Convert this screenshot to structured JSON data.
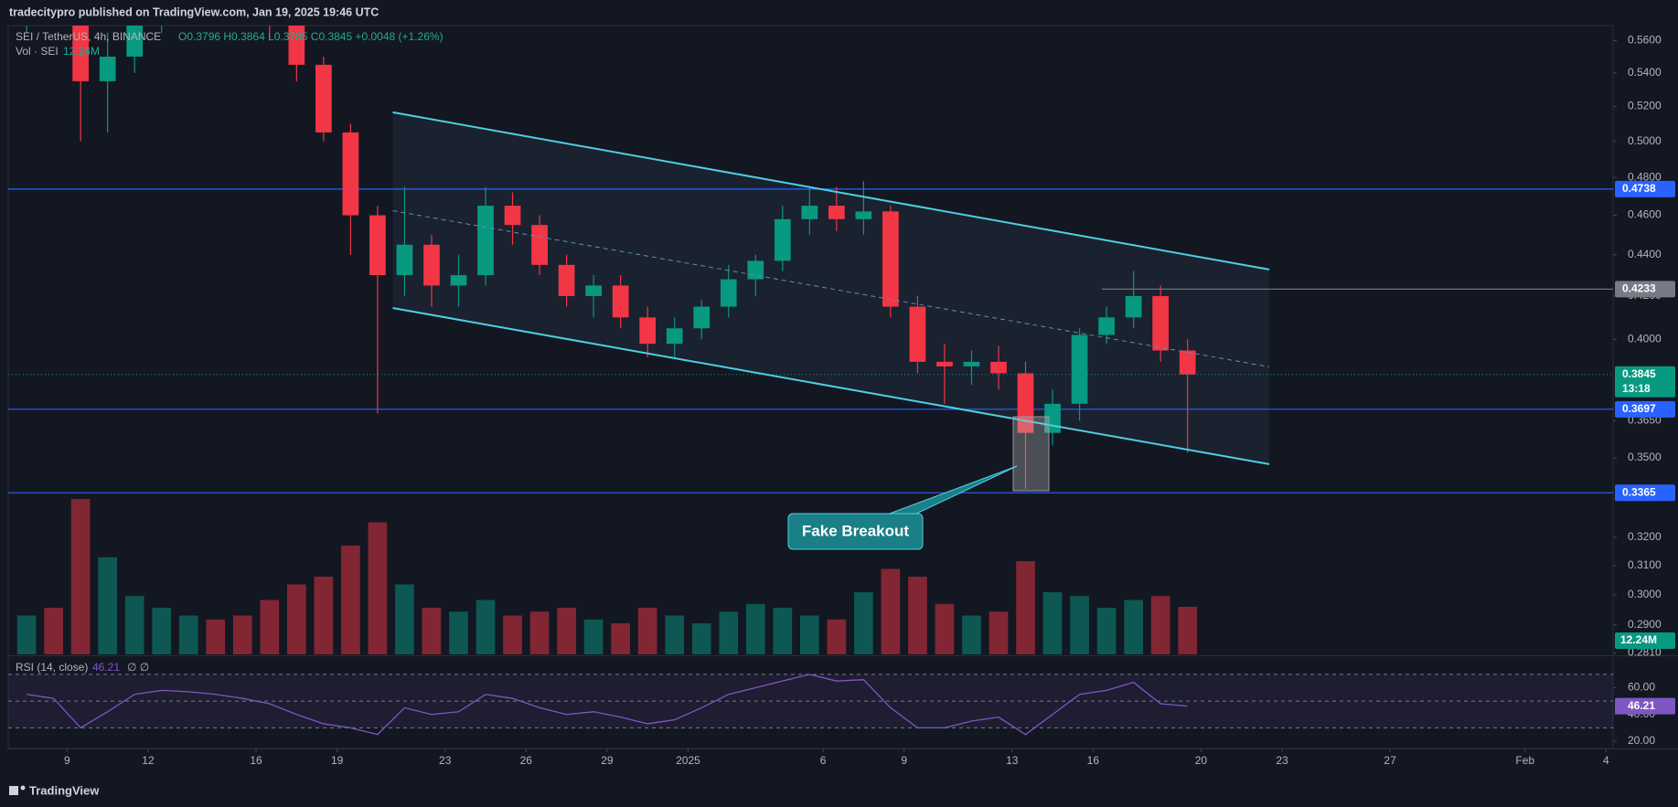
{
  "chart_data": {
    "type": "candlestick",
    "header": "tradecitypro published on TradingView.com, Jan 19, 2025 19:46 UTC",
    "symbol": "SEI / TetherUS, 4h, BINANCE",
    "ohlc_text": "O0.3796 H0.3864 L0.3785 C0.3845 +0.0048 (+1.26%)",
    "volume_title": "Vol · SEI",
    "rsi_title": "RSI (14, close)",
    "rsi_extra": "∅ ∅",
    "footer": "TradingView",
    "annotation": "Fake Breakout",
    "countdown": "13:18",
    "log_scale": true,
    "grid": false,
    "up_color": "#089981",
    "down_color": "#f23645",
    "x": [
      "2024-12-07",
      "2024-12-08",
      "2024-12-09",
      "2024-12-10",
      "2024-12-11",
      "2024-12-12",
      "2024-12-13",
      "2024-12-14",
      "2024-12-15",
      "2024-12-16",
      "2024-12-17",
      "2024-12-18",
      "2024-12-19",
      "2024-12-20",
      "2024-12-21",
      "2024-12-22",
      "2024-12-23",
      "2024-12-24",
      "2024-12-25",
      "2024-12-26",
      "2024-12-27",
      "2024-12-28",
      "2024-12-29",
      "2024-12-30",
      "2024-12-31",
      "2025-01-01",
      "2025-01-02",
      "2025-01-03",
      "2025-01-04",
      "2025-01-05",
      "2025-01-06",
      "2025-01-07",
      "2025-01-08",
      "2025-01-09",
      "2025-01-10",
      "2025-01-11",
      "2025-01-12",
      "2025-01-13",
      "2025-01-14",
      "2025-01-15",
      "2025-01-16",
      "2025-01-17",
      "2025-01-18",
      "2025-01-19"
    ],
    "open": [
      0.575,
      0.585,
      0.58,
      0.535,
      0.55,
      0.58,
      0.595,
      0.6,
      0.595,
      0.585,
      0.57,
      0.545,
      0.505,
      0.46,
      0.43,
      0.445,
      0.425,
      0.43,
      0.465,
      0.455,
      0.435,
      0.42,
      0.425,
      0.41,
      0.398,
      0.405,
      0.415,
      0.428,
      0.437,
      0.458,
      0.465,
      0.458,
      0.462,
      0.415,
      0.39,
      0.388,
      0.39,
      0.385,
      0.36,
      0.372,
      0.402,
      0.41,
      0.42,
      0.395
    ],
    "high": [
      0.6,
      0.61,
      0.59,
      0.565,
      0.59,
      0.61,
      0.62,
      0.63,
      0.61,
      0.6,
      0.58,
      0.55,
      0.51,
      0.465,
      0.475,
      0.45,
      0.44,
      0.475,
      0.472,
      0.46,
      0.44,
      0.43,
      0.43,
      0.415,
      0.41,
      0.418,
      0.435,
      0.44,
      0.465,
      0.475,
      0.475,
      0.478,
      0.465,
      0.42,
      0.398,
      0.395,
      0.397,
      0.39,
      0.378,
      0.405,
      0.415,
      0.432,
      0.425,
      0.4
    ],
    "low": [
      0.565,
      0.57,
      0.5,
      0.505,
      0.54,
      0.565,
      0.58,
      0.585,
      0.575,
      0.56,
      0.535,
      0.5,
      0.44,
      0.368,
      0.42,
      0.415,
      0.415,
      0.425,
      0.445,
      0.43,
      0.415,
      0.41,
      0.405,
      0.392,
      0.392,
      0.4,
      0.41,
      0.42,
      0.432,
      0.45,
      0.452,
      0.45,
      0.41,
      0.385,
      0.372,
      0.38,
      0.378,
      0.338,
      0.355,
      0.365,
      0.398,
      0.405,
      0.39,
      0.352
    ],
    "close": [
      0.585,
      0.58,
      0.535,
      0.55,
      0.58,
      0.595,
      0.6,
      0.595,
      0.585,
      0.57,
      0.545,
      0.505,
      0.46,
      0.43,
      0.445,
      0.425,
      0.43,
      0.465,
      0.455,
      0.435,
      0.42,
      0.425,
      0.41,
      0.398,
      0.405,
      0.415,
      0.428,
      0.437,
      0.458,
      0.465,
      0.458,
      0.462,
      0.415,
      0.39,
      0.388,
      0.39,
      0.385,
      0.36,
      0.372,
      0.402,
      0.41,
      0.42,
      0.395,
      0.3845
    ],
    "volume": {
      "values": [
        10,
        12,
        40,
        25,
        15,
        12,
        10,
        9,
        10,
        14,
        18,
        20,
        28,
        34,
        18,
        12,
        11,
        14,
        10,
        11,
        12,
        9,
        8,
        12,
        10,
        8,
        11,
        13,
        12,
        10,
        9,
        16,
        22,
        20,
        13,
        10,
        11,
        24,
        16,
        15,
        12,
        14,
        15,
        12.24
      ],
      "last_value_label": "12.24M",
      "ylim": [
        0,
        40
      ]
    },
    "rsi": {
      "values": [
        55,
        52,
        30,
        42,
        55,
        58,
        57,
        55,
        52,
        48,
        40,
        33,
        30,
        25,
        45,
        40,
        42,
        55,
        52,
        45,
        40,
        42,
        38,
        33,
        36,
        45,
        55,
        60,
        65,
        70,
        65,
        66,
        45,
        30,
        30,
        35,
        38,
        25,
        40,
        55,
        58,
        64,
        48,
        46.21
      ],
      "ylim": [
        14.5,
        82.9
      ],
      "yticks": [
        {
          "value": 60,
          "label": "60.00"
        },
        {
          "value": 40,
          "label": "40.00"
        },
        {
          "value": 20,
          "label": "20.00"
        }
      ],
      "bands": [
        70,
        50,
        30
      ],
      "color": "#7e57c2"
    },
    "xlim": [
      "2024-12-06T19:40:00Z",
      "2025-02-04T06:15:00Z"
    ],
    "xticks": [
      {
        "value": "2024-12-09",
        "label": "9"
      },
      {
        "value": "2024-12-12",
        "label": "12"
      },
      {
        "value": "2024-12-16",
        "label": "16"
      },
      {
        "value": "2024-12-19",
        "label": "19"
      },
      {
        "value": "2024-12-23",
        "label": "23"
      },
      {
        "value": "2024-12-26",
        "label": "26"
      },
      {
        "value": "2024-12-29",
        "label": "29"
      },
      {
        "value": "2025-01-01",
        "label": "2025"
      },
      {
        "value": "2025-01-06",
        "label": "6"
      },
      {
        "value": "2025-01-09",
        "label": "9"
      },
      {
        "value": "2025-01-13",
        "label": "13"
      },
      {
        "value": "2025-01-16",
        "label": "16"
      },
      {
        "value": "2025-01-20",
        "label": "20"
      },
      {
        "value": "2025-01-23",
        "label": "23"
      },
      {
        "value": "2025-01-27",
        "label": "27"
      },
      {
        "value": "2025-02-01",
        "label": "Feb"
      },
      {
        "value": "2025-02-04",
        "label": "4"
      }
    ],
    "ylim": [
      0.2805,
      0.5696
    ],
    "yticks": [
      {
        "value": 0.56,
        "label": "0.5600"
      },
      {
        "value": 0.54,
        "label": "0.5400"
      },
      {
        "value": 0.52,
        "label": "0.5200"
      },
      {
        "value": 0.5,
        "label": "0.5000"
      },
      {
        "value": 0.48,
        "label": "0.4800"
      },
      {
        "value": 0.46,
        "label": "0.4600"
      },
      {
        "value": 0.44,
        "label": "0.4400"
      },
      {
        "value": 0.42,
        "label": "0.4200"
      },
      {
        "value": 0.4,
        "label": "0.4000"
      },
      {
        "value": 0.365,
        "label": "0.3650"
      },
      {
        "value": 0.35,
        "label": "0.3500"
      },
      {
        "value": 0.32,
        "label": "0.3200"
      },
      {
        "value": 0.31,
        "label": "0.3100"
      },
      {
        "value": 0.3,
        "label": "0.3000"
      },
      {
        "value": 0.29,
        "label": "0.2900"
      },
      {
        "value": 0.281,
        "label": "0.2810"
      }
    ],
    "levels": [
      {
        "value": 0.4738,
        "color": "#2962ff"
      },
      {
        "value": 0.4233,
        "color": "#787b86"
      },
      {
        "value": 0.3697,
        "color": "#2962ff"
      },
      {
        "value": 0.3365,
        "color": "#2962ff"
      }
    ],
    "last_price": 0.3845
  }
}
